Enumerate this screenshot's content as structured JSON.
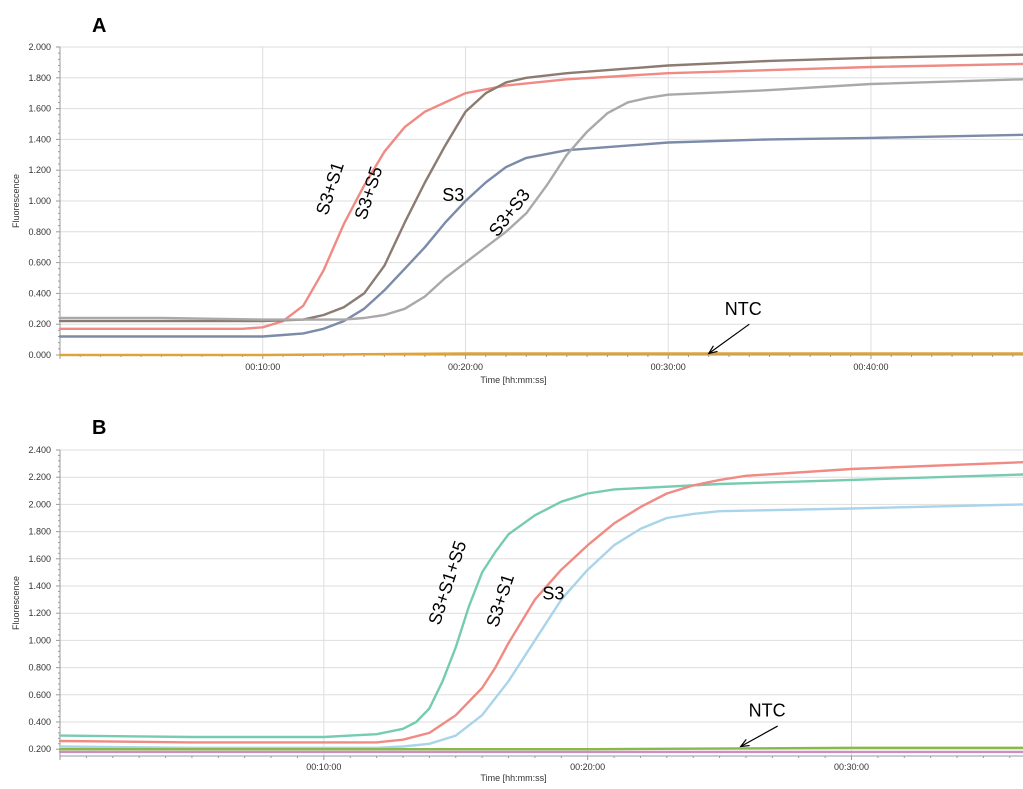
{
  "colors": {
    "gridline": "#dedede",
    "axis": "#9a9a9a",
    "text": "#333333"
  },
  "chart_data": [
    {
      "type": "line",
      "panel_label": "A",
      "ylabel": "Fluorescence",
      "xlabel": "Time [hh:mm:ss]",
      "xlim": [
        0,
        47.5
      ],
      "ylim": [
        0,
        2.0
      ],
      "x_unit": "minutes",
      "x_ticks": [
        10,
        20,
        30,
        40
      ],
      "x_tick_labels": [
        "00:10:00",
        "00:20:00",
        "00:30:00",
        "00:40:00"
      ],
      "y_ticks": [
        0,
        0.2,
        0.4,
        0.6,
        0.8,
        1.0,
        1.2,
        1.4,
        1.6,
        1.8,
        2.0
      ],
      "y_tick_labels": [
        "0.000",
        "0.200",
        "0.400",
        "0.600",
        "0.800",
        "1.000",
        "1.200",
        "1.400",
        "1.600",
        "1.800",
        "2.000"
      ],
      "grid": true,
      "series": [
        {
          "name": "S3+S1",
          "color": "#f08a84",
          "x": [
            0,
            5,
            9,
            10,
            11,
            12,
            13,
            14,
            15,
            16,
            17,
            18,
            19,
            20,
            22,
            25,
            30,
            35,
            40,
            47.5
          ],
          "values": [
            0.17,
            0.17,
            0.17,
            0.18,
            0.22,
            0.32,
            0.55,
            0.85,
            1.1,
            1.32,
            1.48,
            1.58,
            1.64,
            1.7,
            1.75,
            1.79,
            1.83,
            1.85,
            1.87,
            1.89
          ],
          "label": "S3+S1",
          "label_pos": [
            13.6,
            1.07
          ],
          "label_rotation": -72
        },
        {
          "name": "S3+S5",
          "color": "#8b7b72",
          "x": [
            0,
            5,
            10,
            12,
            13,
            14,
            15,
            16,
            17,
            18,
            19,
            20,
            21,
            22,
            23,
            25,
            30,
            35,
            40,
            47.5
          ],
          "values": [
            0.22,
            0.22,
            0.22,
            0.23,
            0.26,
            0.31,
            0.4,
            0.58,
            0.86,
            1.12,
            1.36,
            1.58,
            1.7,
            1.77,
            1.8,
            1.83,
            1.88,
            1.91,
            1.93,
            1.95
          ],
          "label": "S3+S5",
          "label_pos": [
            15.5,
            1.04
          ],
          "label_rotation": -72
        },
        {
          "name": "S3",
          "color": "#7b8ba8",
          "x": [
            0,
            5,
            10,
            11,
            12,
            13,
            14,
            15,
            16,
            17,
            18,
            19,
            20,
            21,
            22,
            23,
            25,
            30,
            35,
            40,
            47.5
          ],
          "values": [
            0.12,
            0.12,
            0.12,
            0.13,
            0.14,
            0.17,
            0.22,
            0.3,
            0.42,
            0.56,
            0.7,
            0.86,
            1.0,
            1.12,
            1.22,
            1.28,
            1.33,
            1.38,
            1.4,
            1.41,
            1.43
          ],
          "label": "S3",
          "label_pos": [
            19.4,
            1.0
          ],
          "label_rotation": 0
        },
        {
          "name": "S3+S3",
          "color": "#a9a9a9",
          "x": [
            0,
            5,
            10,
            14,
            15,
            16,
            17,
            18,
            19,
            20,
            21,
            22,
            23,
            24,
            25,
            26,
            27,
            28,
            29,
            30,
            35,
            40,
            47.5
          ],
          "values": [
            0.24,
            0.24,
            0.23,
            0.23,
            0.24,
            0.26,
            0.3,
            0.38,
            0.5,
            0.6,
            0.7,
            0.8,
            0.92,
            1.1,
            1.3,
            1.45,
            1.57,
            1.64,
            1.67,
            1.69,
            1.72,
            1.76,
            1.79
          ],
          "label": "S3+S3",
          "label_pos": [
            22.4,
            0.9
          ],
          "label_rotation": -52
        },
        {
          "name": "NTC",
          "color": "#e0a33a",
          "x": [
            0,
            10,
            20,
            30,
            40,
            47.5
          ],
          "values": [
            0.0,
            0.0,
            0.01,
            0.01,
            0.01,
            0.01
          ],
          "label": "NTC",
          "label_pos": [
            33.7,
            0.26
          ],
          "label_rotation": 0,
          "arrow_from": [
            34.0,
            0.2
          ],
          "arrow_to": [
            32.0,
            0.01
          ]
        }
      ]
    },
    {
      "type": "line",
      "panel_label": "B",
      "ylabel": "Fluorescence",
      "xlabel": "Time [hh:mm:ss]",
      "xlim": [
        0,
        36.5
      ],
      "ylim": [
        0.15,
        2.4
      ],
      "x_unit": "minutes",
      "x_ticks": [
        10,
        20,
        30
      ],
      "x_tick_labels": [
        "00:10:00",
        "00:20:00",
        "00:30:00"
      ],
      "y_ticks": [
        0.2,
        0.4,
        0.6,
        0.8,
        1.0,
        1.2,
        1.4,
        1.6,
        1.8,
        2.0,
        2.2,
        2.4
      ],
      "y_tick_labels": [
        "0.200",
        "0.400",
        "0.600",
        "0.800",
        "1.000",
        "1.200",
        "1.400",
        "1.600",
        "1.800",
        "2.000",
        "2.200",
        "2.400"
      ],
      "grid": true,
      "series": [
        {
          "name": "S3+S1+S5",
          "color": "#76cbb0",
          "x": [
            0,
            5,
            10,
            11,
            12,
            13,
            13.5,
            14,
            14.5,
            15,
            15.5,
            16,
            16.5,
            17,
            18,
            19,
            20,
            21,
            22,
            25,
            30,
            36.5
          ],
          "values": [
            0.3,
            0.29,
            0.29,
            0.3,
            0.31,
            0.35,
            0.4,
            0.5,
            0.7,
            0.95,
            1.25,
            1.5,
            1.65,
            1.78,
            1.92,
            2.02,
            2.08,
            2.11,
            2.12,
            2.15,
            2.18,
            2.22
          ],
          "label": "S3+S1+S5",
          "label_pos": [
            14.9,
            1.41
          ],
          "label_rotation": -72
        },
        {
          "name": "S3+S1",
          "color": "#f08a84",
          "x": [
            0,
            5,
            10,
            12,
            13,
            14,
            15,
            16,
            16.5,
            17,
            18,
            19,
            20,
            21,
            22,
            23,
            24,
            25,
            26,
            30,
            36.5
          ],
          "values": [
            0.26,
            0.25,
            0.25,
            0.25,
            0.27,
            0.32,
            0.45,
            0.65,
            0.8,
            0.98,
            1.3,
            1.52,
            1.7,
            1.86,
            1.98,
            2.08,
            2.14,
            2.18,
            2.21,
            2.26,
            2.31
          ],
          "label": "S3+S1",
          "label_pos": [
            16.9,
            1.28
          ],
          "label_rotation": -72
        },
        {
          "name": "S3",
          "color": "#a9d4ea",
          "x": [
            0,
            5,
            10,
            12,
            13,
            14,
            15,
            16,
            17,
            18,
            19,
            20,
            21,
            22,
            23,
            24,
            25,
            30,
            36.5
          ],
          "values": [
            0.22,
            0.21,
            0.21,
            0.21,
            0.22,
            0.24,
            0.3,
            0.45,
            0.7,
            1.0,
            1.3,
            1.52,
            1.7,
            1.82,
            1.9,
            1.93,
            1.95,
            1.97,
            2.0
          ],
          "label": "S3",
          "label_pos": [
            18.7,
            1.3
          ],
          "label_rotation": 0
        },
        {
          "name": "NTC",
          "color": "#8bb84a",
          "x": [
            0,
            10,
            20,
            30,
            36.5
          ],
          "values": [
            0.2,
            0.2,
            0.2,
            0.21,
            0.21
          ],
          "label": "NTC",
          "label_pos": [
            26.8,
            0.44
          ],
          "label_rotation": 0,
          "arrow_from": [
            27.2,
            0.37
          ],
          "arrow_to": [
            25.8,
            0.22
          ]
        },
        {
          "name": "NTC",
          "color": "#c98ec4",
          "x": [
            0,
            10,
            20,
            30,
            36.5
          ],
          "values": [
            0.18,
            0.18,
            0.18,
            0.18,
            0.18
          ]
        }
      ]
    }
  ]
}
